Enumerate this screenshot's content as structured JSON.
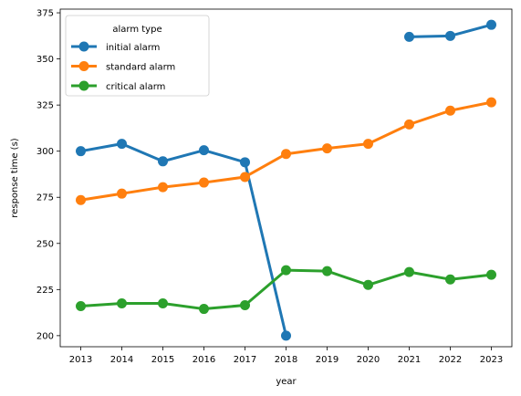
{
  "chart_data": {
    "type": "line",
    "xlabel": "year",
    "ylabel": "response time (s)",
    "x": [
      2013,
      2014,
      2015,
      2016,
      2017,
      2018,
      2019,
      2020,
      2021,
      2022,
      2023
    ],
    "x_tick_labels": [
      "2013",
      "2014",
      "2015",
      "2016",
      "2017",
      "2018",
      "2019",
      "2020",
      "2021",
      "2022",
      "2023"
    ],
    "ylim": [
      194,
      377
    ],
    "y_ticks": [
      200,
      225,
      250,
      275,
      300,
      325,
      350,
      375
    ],
    "y_tick_labels": [
      "200",
      "225",
      "250",
      "275",
      "300",
      "325",
      "350",
      "375"
    ],
    "grid": false,
    "legend": {
      "title": "alarm type",
      "placement": "top-left"
    },
    "series": [
      {
        "name": "initial alarm",
        "color": "#1f77b4",
        "values": [
          300,
          304,
          294.5,
          300.5,
          294,
          200,
          null,
          null,
          362,
          362.5,
          368.5
        ]
      },
      {
        "name": "standard alarm",
        "color": "#ff7f0e",
        "values": [
          273.5,
          277,
          280.5,
          283,
          286,
          298.5,
          301.5,
          304,
          314.5,
          322,
          326.5
        ]
      },
      {
        "name": "critical alarm",
        "color": "#2ca02c",
        "values": [
          216,
          217.5,
          217.5,
          214.5,
          216.5,
          235.5,
          235,
          227.5,
          234.5,
          230.5,
          233
        ]
      }
    ]
  }
}
